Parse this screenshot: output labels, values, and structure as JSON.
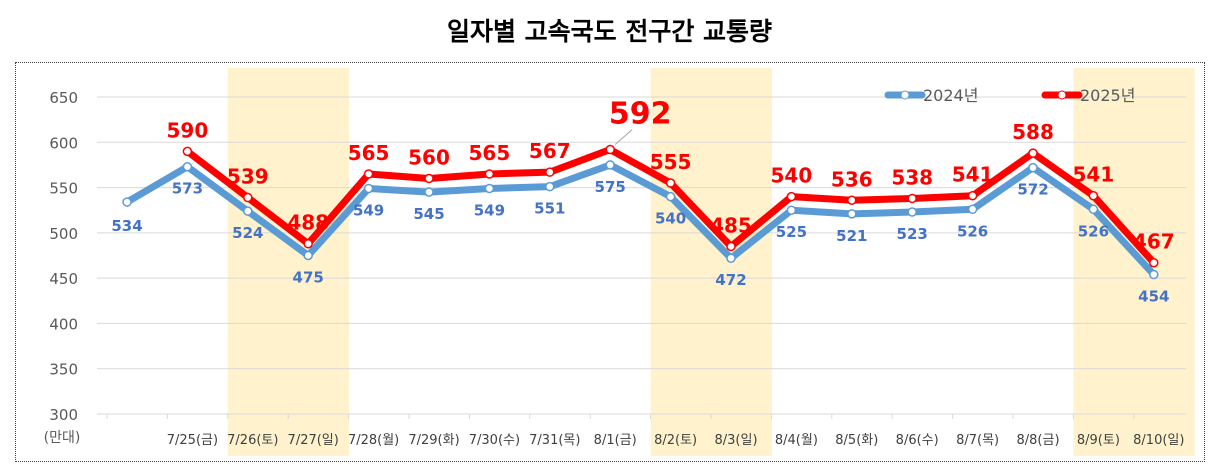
{
  "chart_data": {
    "type": "line",
    "title": "일자별 고속국도 전구간 교통량",
    "ylabel": "(만대)",
    "xlabel": "",
    "ylim": [
      300,
      650
    ],
    "yticks": [
      "650",
      "600",
      "550",
      "500",
      "450",
      "400",
      "350",
      "300"
    ],
    "grid": true,
    "legend_position": "top-right",
    "categories": [
      "",
      "7/25(금)",
      "7/26(토)",
      "7/27(일)",
      "7/28(월)",
      "7/29(화)",
      "7/30(수)",
      "7/31(목)",
      "8/1(금)",
      "8/2(토)",
      "8/3(일)",
      "8/4(월)",
      "8/5(화)",
      "8/6(수)",
      "8/7(목)",
      "8/8(금)",
      "8/9(토)",
      "8/10(일)"
    ],
    "weekend_shaded": [
      "7/26(토)",
      "7/27(일)",
      "8/2(토)",
      "8/3(일)",
      "8/9(토)",
      "8/10(일)"
    ],
    "series": [
      {
        "name": "2024년",
        "color": "#5b9bd5",
        "label_color": "#4472c4",
        "values": [
          534,
          573,
          524,
          475,
          549,
          545,
          549,
          551,
          575,
          540,
          472,
          525,
          521,
          523,
          526,
          572,
          526,
          454
        ]
      },
      {
        "name": "2025년",
        "color": "#ff0000",
        "label_color": "#ff0000",
        "values": [
          null,
          590,
          539,
          488,
          565,
          560,
          565,
          567,
          592,
          555,
          485,
          540,
          536,
          538,
          541,
          588,
          541,
          467
        ]
      }
    ],
    "highlight_label": "592"
  }
}
